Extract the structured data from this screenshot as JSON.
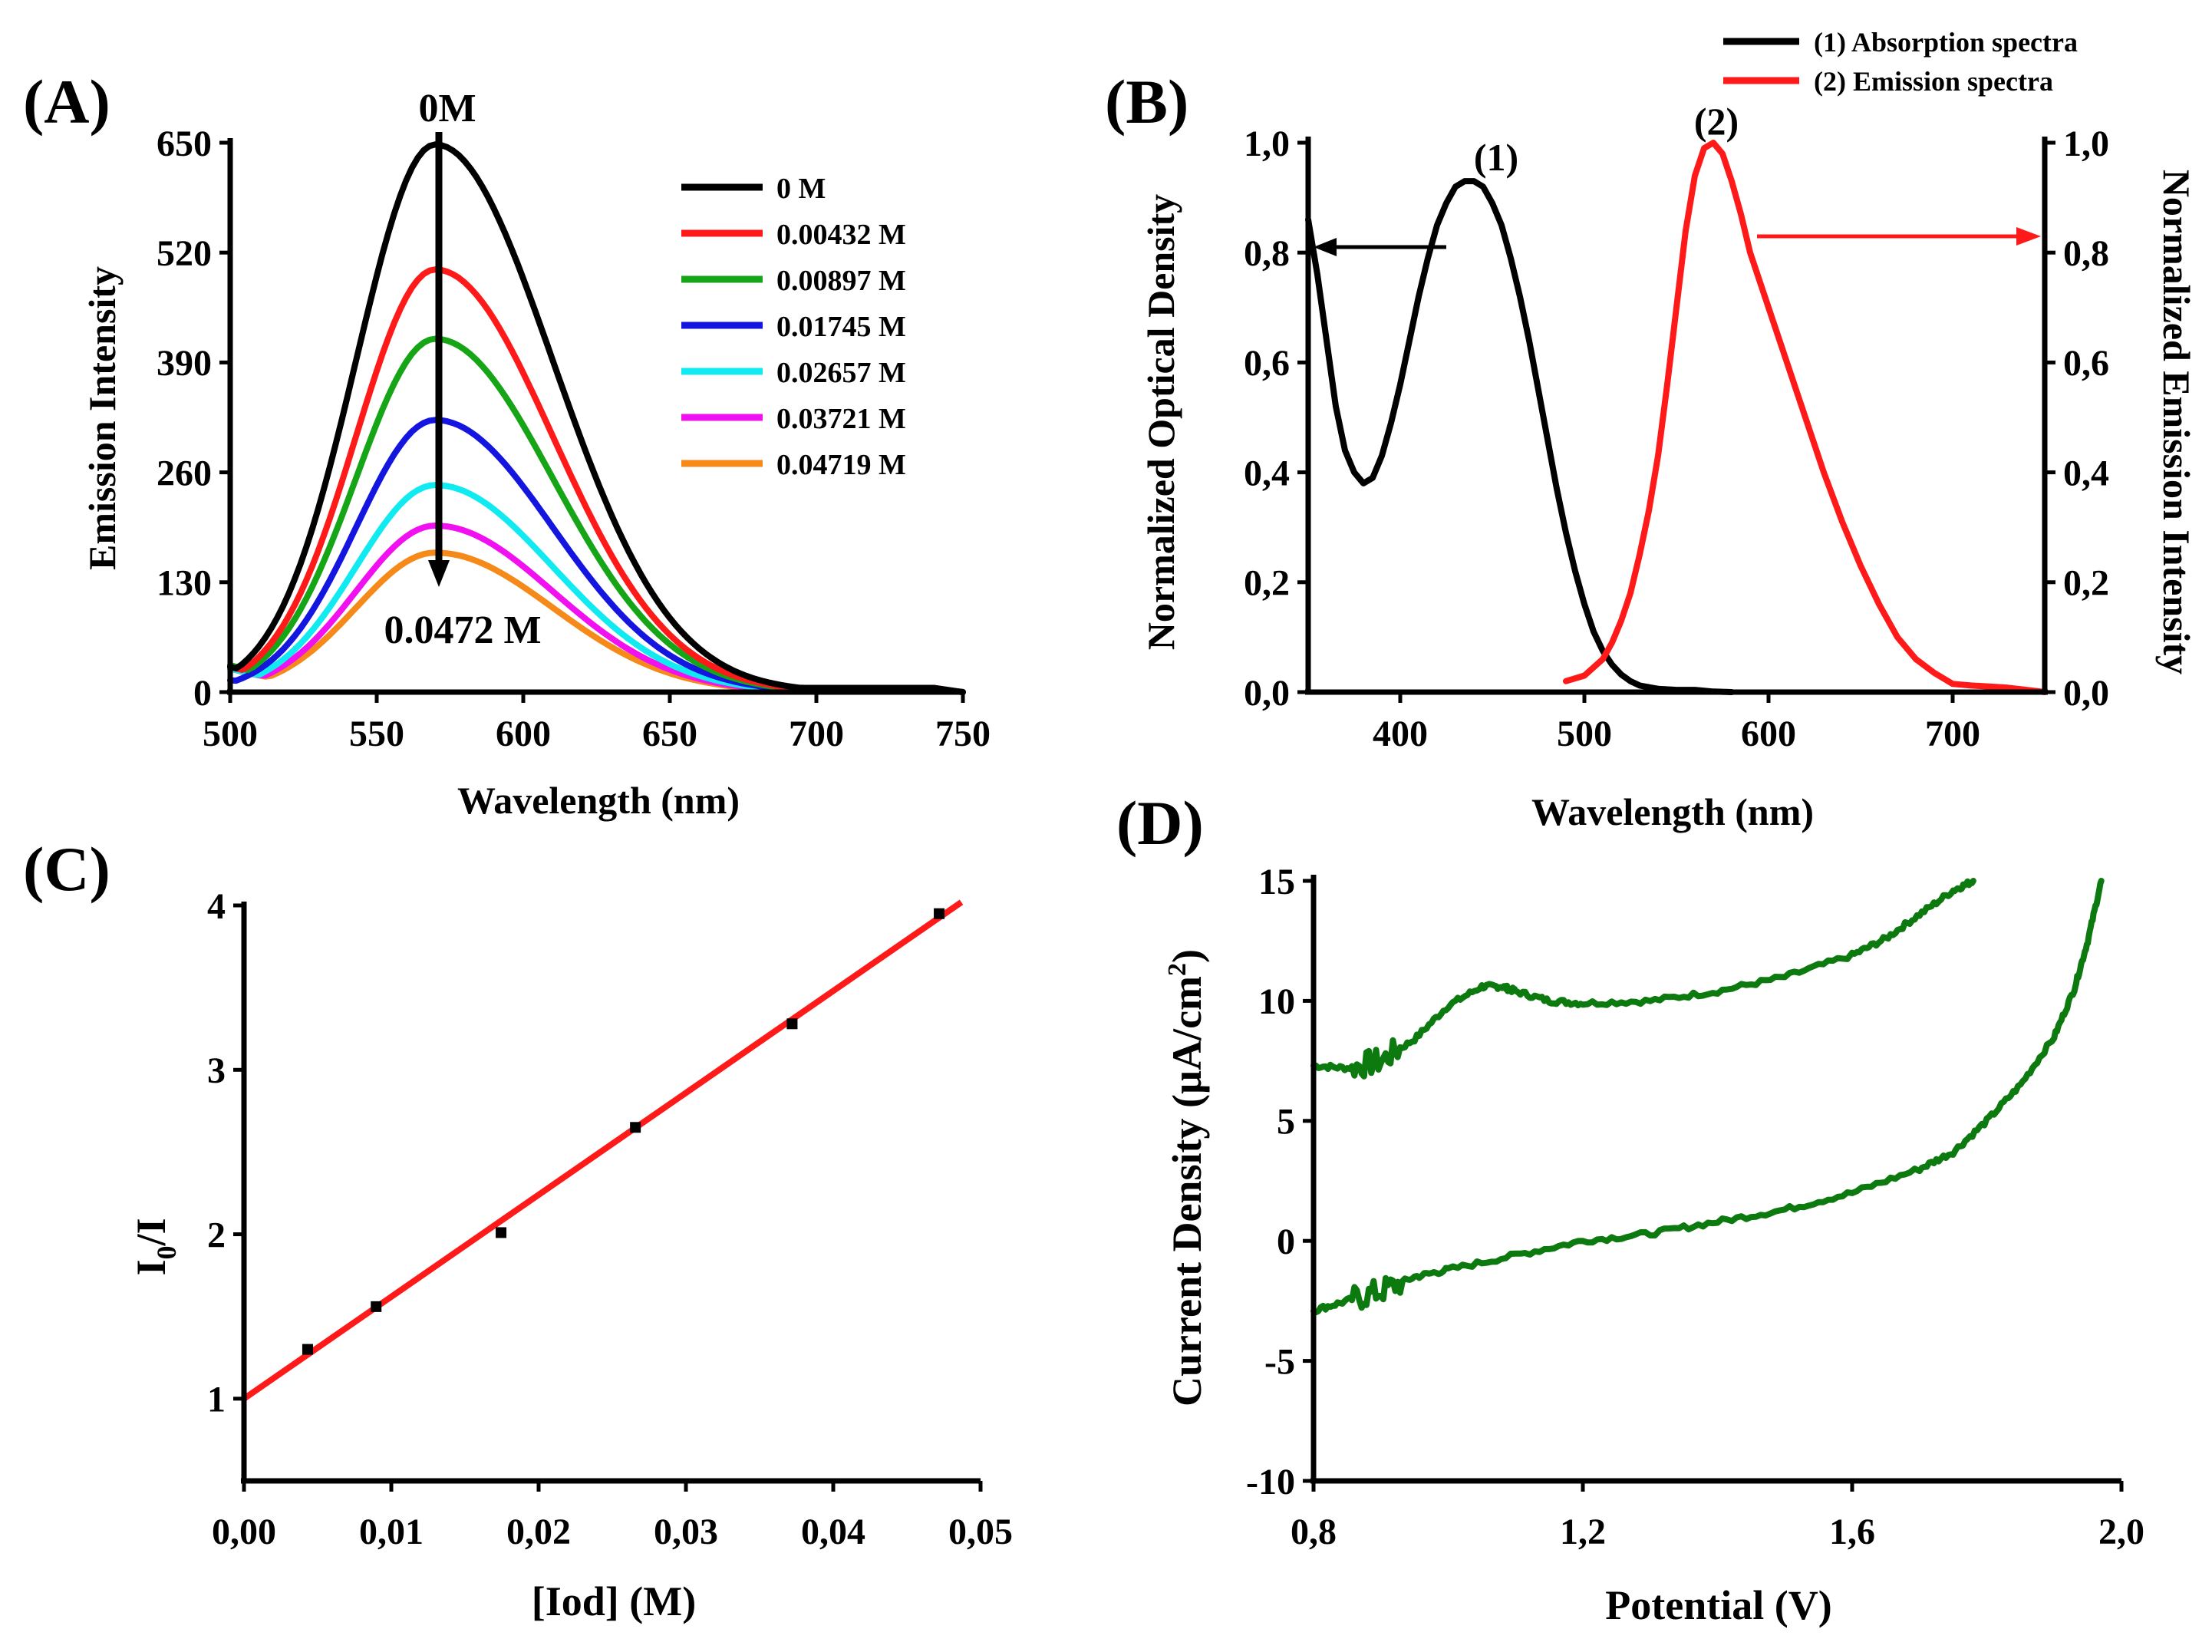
{
  "colors": {
    "black": "#000000",
    "red": "#ff1a1a",
    "green": "#16a516",
    "blue": "#1515e0",
    "cyan": "#10eaf0",
    "magenta": "#f010f0",
    "orange": "#f58a1a",
    "dark_green": "#0d7a10"
  },
  "chart_data": [
    {
      "id": "A",
      "panel_label": "(A)",
      "type": "line",
      "xlabel": "Wavelength (nm)",
      "ylabel": "Emission Intensity",
      "xlim": [
        500,
        750
      ],
      "ylim": [
        0,
        650
      ],
      "xticks": [
        500,
        550,
        600,
        650,
        700,
        750
      ],
      "xtick_labels": [
        "500",
        "550",
        "600",
        "650",
        "700",
        "750"
      ],
      "yticks": [
        0,
        130,
        260,
        390,
        520,
        650
      ],
      "ytick_labels": [
        "0",
        "130",
        "260",
        "390",
        "520",
        "650"
      ],
      "annotation_top": "0M",
      "annotation_bottom": "0.0472 M",
      "series": [
        {
          "name": "0 M",
          "color_key": "black",
          "peak": 648,
          "start": 25,
          "tail": 5
        },
        {
          "name": "0.00432 M",
          "color_key": "red",
          "peak": 500,
          "start": 25,
          "tail": 5
        },
        {
          "name": "0.00897 M",
          "color_key": "green",
          "peak": 418,
          "start": 28,
          "tail": 4
        },
        {
          "name": "0.01745 M",
          "color_key": "blue",
          "peak": 322,
          "start": 10,
          "tail": 4
        },
        {
          "name": "0.02657 M",
          "color_key": "cyan",
          "peak": 245,
          "start": 25,
          "tail": 3
        },
        {
          "name": "0.03721 M",
          "color_key": "magenta",
          "peak": 197,
          "start": 25,
          "tail": 3
        },
        {
          "name": "0.04719 M",
          "color_key": "orange",
          "peak": 165,
          "start": 25,
          "tail": 3
        }
      ],
      "peak_wavelength_nm": 570
    },
    {
      "id": "B",
      "panel_label": "(B)",
      "type": "line",
      "xlabel": "Wavelength (nm)",
      "ylabel_left": "Normalized Optical Density",
      "ylabel_right": "Normalized Emission Intensity",
      "xlim": [
        350,
        750
      ],
      "ylim": [
        0,
        1.0
      ],
      "xticks": [
        400,
        500,
        600,
        700
      ],
      "xtick_labels": [
        "400",
        "500",
        "600",
        "700"
      ],
      "yticks": [
        0,
        0.2,
        0.4,
        0.6,
        0.8,
        1.0
      ],
      "ytick_labels": [
        "0,0",
        "0,2",
        "0,4",
        "0,6",
        "0,8",
        "1,0"
      ],
      "series": [
        {
          "name": "(1) Absorption spectra",
          "marker": "(1)",
          "color_key": "black",
          "x": [
            350,
            355,
            360,
            365,
            370,
            375,
            380,
            385,
            390,
            395,
            400,
            405,
            410,
            415,
            420,
            425,
            430,
            435,
            440,
            445,
            450,
            455,
            460,
            465,
            470,
            475,
            480,
            485,
            490,
            495,
            500,
            505,
            510,
            515,
            520,
            525,
            530,
            540,
            550,
            560,
            570,
            580
          ],
          "y": [
            0.86,
            0.76,
            0.64,
            0.52,
            0.44,
            0.4,
            0.38,
            0.39,
            0.43,
            0.49,
            0.56,
            0.64,
            0.72,
            0.79,
            0.85,
            0.89,
            0.92,
            0.93,
            0.93,
            0.92,
            0.89,
            0.85,
            0.79,
            0.72,
            0.64,
            0.55,
            0.46,
            0.37,
            0.29,
            0.22,
            0.16,
            0.11,
            0.075,
            0.05,
            0.032,
            0.02,
            0.012,
            0.006,
            0.004,
            0.004,
            0.001,
            0.0
          ]
        },
        {
          "name": "(2) Emission spectra",
          "marker": "(2)",
          "color_key": "red",
          "x": [
            490,
            500,
            510,
            515,
            520,
            525,
            530,
            535,
            540,
            545,
            550,
            555,
            560,
            565,
            570,
            575,
            580,
            585,
            590,
            600,
            610,
            620,
            630,
            640,
            650,
            660,
            670,
            680,
            690,
            700,
            710,
            720,
            730,
            740,
            750
          ],
          "y": [
            0.02,
            0.03,
            0.06,
            0.09,
            0.13,
            0.18,
            0.25,
            0.33,
            0.43,
            0.56,
            0.7,
            0.84,
            0.94,
            0.99,
            1.0,
            0.98,
            0.93,
            0.87,
            0.8,
            0.7,
            0.6,
            0.5,
            0.4,
            0.31,
            0.23,
            0.16,
            0.1,
            0.06,
            0.035,
            0.015,
            0.012,
            0.01,
            0.008,
            0.004,
            0.0
          ]
        }
      ]
    },
    {
      "id": "C",
      "panel_label": "(C)",
      "type": "scatter",
      "xlabel": "[Iod] (M)",
      "ylabel_main": "I",
      "ylabel_sub": "0",
      "ylabel_tail": "/I",
      "xlim": [
        0,
        0.05
      ],
      "ylim": [
        0.5,
        4
      ],
      "xticks": [
        0,
        0.01,
        0.02,
        0.03,
        0.04,
        0.05
      ],
      "xtick_labels": [
        "0,00",
        "0,01",
        "0,02",
        "0,03",
        "0,04",
        "0,05"
      ],
      "yticks": [
        1,
        2,
        3,
        4
      ],
      "ytick_labels": [
        "1",
        "2",
        "3",
        "4"
      ],
      "points": {
        "x": [
          0.00432,
          0.00897,
          0.01745,
          0.02657,
          0.03721,
          0.04719
        ],
        "y": [
          1.3,
          1.56,
          2.01,
          2.65,
          3.28,
          3.95
        ]
      },
      "fit": {
        "intercept": 1.0,
        "slope": 62.0,
        "x_range": [
          0,
          0.0487
        ]
      }
    },
    {
      "id": "D",
      "panel_label": "(D)",
      "type": "line",
      "xlabel": "Potential (V)",
      "ylabel": "Current Density (µA/cm",
      "ylabel_sup": "2",
      "ylabel_close": ")",
      "xlim": [
        0.8,
        2.0
      ],
      "ylim": [
        -10,
        15
      ],
      "xticks": [
        0.8,
        1.2,
        1.6,
        2.0
      ],
      "xtick_labels": [
        "0,8",
        "1,2",
        "1,6",
        "2,0"
      ],
      "yticks": [
        -10,
        -5,
        0,
        5,
        10,
        15
      ],
      "ytick_labels": [
        "-10",
        "-5",
        "0",
        "5",
        "10",
        "15"
      ],
      "series": [
        {
          "name": "upper branch",
          "color_key": "dark_green",
          "x": [
            0.8,
            0.85,
            0.9,
            0.95,
            1.0,
            1.05,
            1.08,
            1.1,
            1.15,
            1.2,
            1.3,
            1.4,
            1.5,
            1.6,
            1.65,
            1.7,
            1.75,
            1.78
          ],
          "y": [
            7.3,
            7.2,
            7.5,
            8.4,
            9.8,
            10.6,
            10.6,
            10.4,
            10.0,
            9.9,
            10.0,
            10.4,
            11.0,
            11.9,
            12.6,
            13.6,
            14.6,
            15.0
          ]
        },
        {
          "name": "lower branch",
          "color_key": "dark_green",
          "x": [
            0.8,
            0.85,
            0.9,
            0.95,
            1.0,
            1.1,
            1.2,
            1.3,
            1.4,
            1.5,
            1.6,
            1.7,
            1.75,
            1.8,
            1.85,
            1.9,
            1.93,
            1.95,
            1.97
          ],
          "y": [
            -2.9,
            -2.5,
            -2.1,
            -1.5,
            -1.2,
            -0.6,
            0.0,
            0.3,
            0.8,
            1.3,
            2.0,
            3.0,
            3.7,
            5.0,
            6.5,
            8.5,
            10.5,
            12.5,
            15.0
          ]
        }
      ]
    }
  ]
}
